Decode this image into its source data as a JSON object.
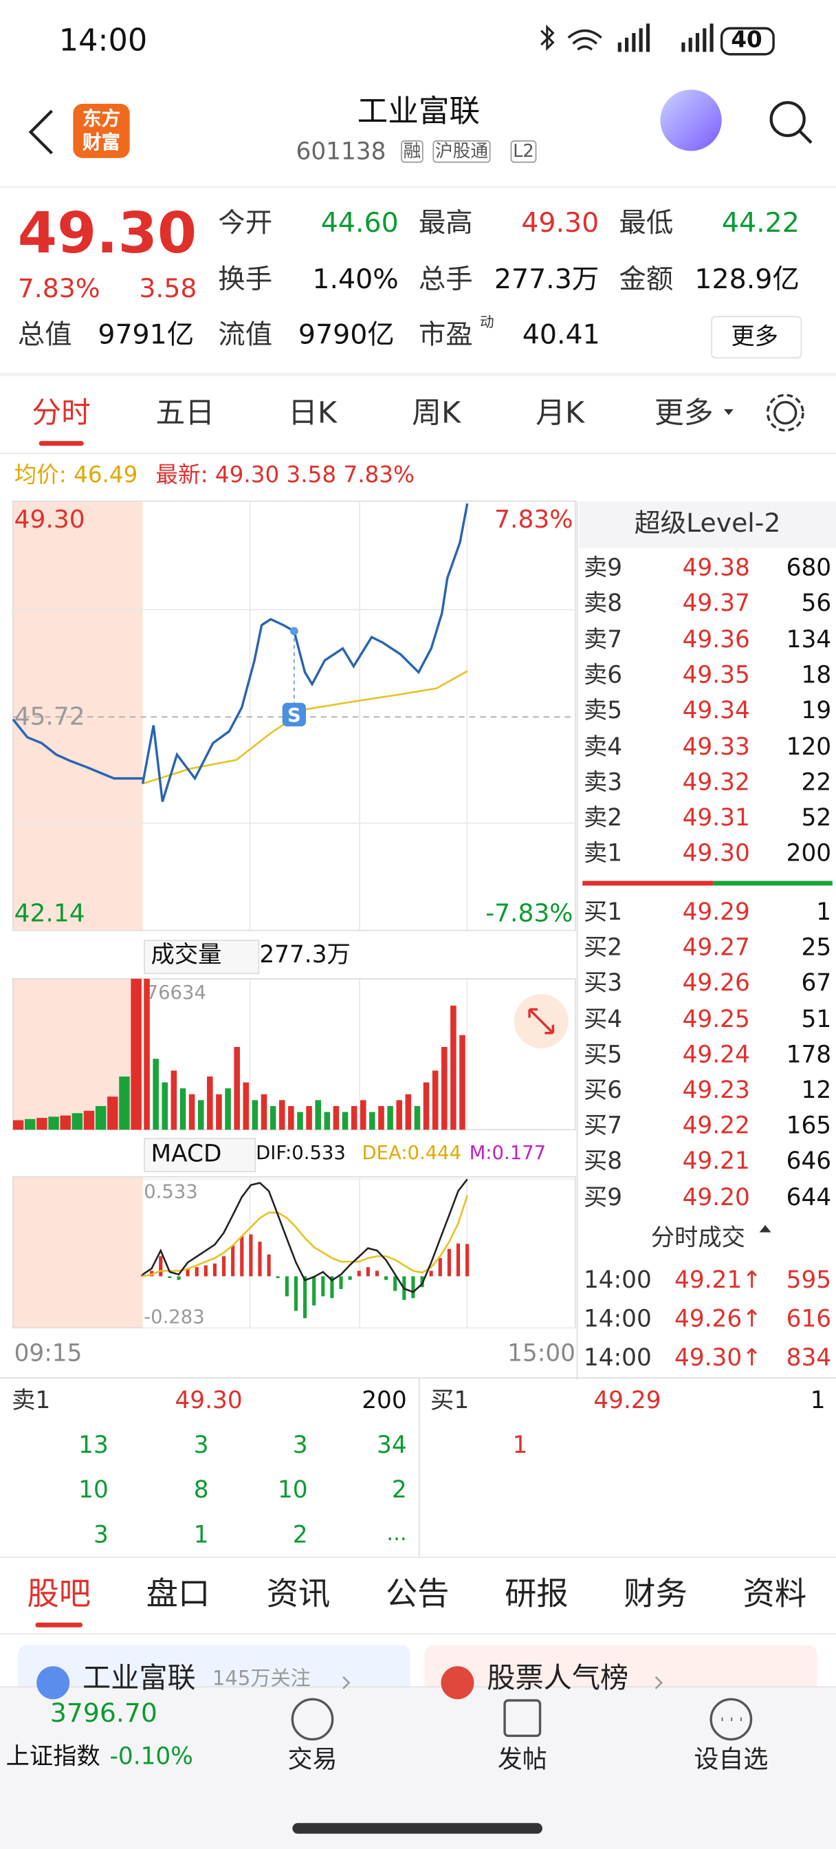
{
  "status": {
    "time": "14:00",
    "battery": "40"
  },
  "header": {
    "logo": [
      "东方",
      "财富"
    ],
    "title": "工业富联",
    "code": "601138",
    "tags": [
      "融",
      "沪股通",
      "L2"
    ]
  },
  "quote": {
    "price": "49.30",
    "change_pct": "7.83%",
    "change": "3.58",
    "fields": [
      {
        "label": "今开",
        "value": "44.60"
      },
      {
        "label": "最高",
        "value": "49.30"
      },
      {
        "label": "最低",
        "value": "44.22"
      },
      {
        "label": "换手",
        "value": "1.40%"
      },
      {
        "label": "总手",
        "value": "277.3万"
      },
      {
        "label": "金额",
        "value": "128.9亿"
      },
      {
        "label": "总值",
        "value": "9791亿"
      },
      {
        "label": "流值",
        "value": "9790亿"
      },
      {
        "label": "市盈",
        "superscript": "动",
        "value": "40.41"
      }
    ],
    "more": "更多"
  },
  "chart_tabs": [
    "分时",
    "五日",
    "日K",
    "周K",
    "月K",
    "更多"
  ],
  "info": {
    "avg": "均价: 46.49",
    "latest": "最新: 49.30 3.58 7.83%"
  },
  "intraday": {
    "ylim": [
      42.14,
      49.3
    ],
    "yticks": [
      {
        "value": 49.3,
        "label": "49.30"
      },
      {
        "value": 45.72,
        "label": "45.72"
      },
      42.14
    ],
    "pct_labels": [
      "7.83%",
      "-7.83%"
    ],
    "auction": [
      45.68,
      45.38,
      45.28,
      45.09,
      44.98,
      44.89,
      44.79,
      44.69,
      44.69,
      44.69
    ],
    "minutes": [
      0,
      6,
      11,
      19,
      29,
      39,
      48,
      55,
      62,
      66,
      71,
      78,
      84,
      90,
      94,
      101,
      111,
      117,
      127,
      133,
      143,
      153,
      160,
      166,
      169,
      176,
      180
    ],
    "price": [
      44.6,
      45.58,
      44.3,
      45.09,
      44.69,
      45.28,
      45.48,
      45.88,
      46.67,
      47.26,
      47.36,
      47.26,
      47.16,
      46.47,
      46.27,
      46.67,
      46.87,
      46.57,
      47.06,
      46.97,
      46.77,
      46.47,
      46.87,
      47.46,
      48.05,
      48.65,
      49.3
    ],
    "avg_minutes": [
      0,
      26,
      52,
      71,
      91,
      117,
      143,
      163,
      180
    ],
    "avg": [
      44.6,
      44.85,
      45.0,
      45.45,
      45.85,
      45.98,
      46.1,
      46.2,
      46.49
    ],
    "marker": "S"
  },
  "volume": {
    "label": "成交量",
    "total": "277.3万",
    "ylim": [
      0,
      76634
    ],
    "yticks": [
      76634
    ],
    "auction": [
      4800,
      5400,
      6000,
      6600,
      7200,
      8400,
      9600,
      12000,
      16800,
      27000,
      76634
    ],
    "values": [
      76634,
      36000,
      24000,
      30000,
      21000,
      18000,
      15000,
      27000,
      18000,
      21000,
      42000,
      24000,
      15000,
      18000,
      12000,
      15000,
      12000,
      9000,
      12000,
      15000,
      9000,
      12000,
      9000,
      12000,
      15000,
      9000,
      12000,
      12000,
      15000,
      18000,
      12000,
      24000,
      30000,
      42000,
      63000,
      48000
    ],
    "colors": [
      "#e0302c",
      "#1aa33a",
      "#1aa33a",
      "#e0302c",
      "#1aa33a",
      "#e0302c",
      "#1aa33a",
      "#e0302c",
      "#e0302c",
      "#1aa33a",
      "#e0302c",
      "#e0302c",
      "#1aa33a",
      "#e0302c",
      "#1aa33a",
      "#e0302c",
      "#e0302c",
      "#1aa33a",
      "#e0302c",
      "#1aa33a",
      "#1aa33a",
      "#e0302c",
      "#1aa33a",
      "#e0302c",
      "#e0302c",
      "#1aa33a",
      "#e0302c",
      "#1aa33a",
      "#e0302c",
      "#e0302c",
      "#1aa33a",
      "#e0302c",
      "#e0302c",
      "#e0302c",
      "#e0302c",
      "#e0302c"
    ]
  },
  "macd": {
    "label": "MACD",
    "dif_label": "DIF:0.533",
    "dea_label": "DEA:0.444",
    "m_label": "M:0.177",
    "ylim": [
      -0.283,
      0.533
    ],
    "yticks": [
      0.533,
      -0.283
    ],
    "dif": [
      0.01,
      0.043,
      0.141,
      0.024,
      0.01,
      0.076,
      0.108,
      0.141,
      0.174,
      0.239,
      0.337,
      0.435,
      0.501,
      0.513,
      0.468,
      0.337,
      0.206,
      0.076,
      -0.022,
      -0.003,
      0.024,
      -0.022,
      0.01,
      0.063,
      0.108,
      0.154,
      0.141,
      0.089,
      0.01,
      -0.068,
      -0.087,
      -0.042,
      0.076,
      0.206,
      0.337,
      0.468,
      0.533
    ],
    "dea": [
      0.0,
      0.01,
      0.03,
      0.03,
      0.03,
      0.04,
      0.06,
      0.08,
      0.1,
      0.13,
      0.17,
      0.22,
      0.27,
      0.32,
      0.35,
      0.35,
      0.32,
      0.27,
      0.21,
      0.16,
      0.13,
      0.1,
      0.08,
      0.08,
      0.08,
      0.1,
      0.11,
      0.11,
      0.09,
      0.06,
      0.03,
      0.02,
      0.05,
      0.11,
      0.19,
      0.29,
      0.444
    ],
    "hist": [
      0.01,
      0.03,
      0.11,
      -0.01,
      -0.02,
      0.04,
      0.05,
      0.06,
      0.07,
      0.11,
      0.17,
      0.22,
      0.23,
      0.19,
      0.12,
      -0.01,
      -0.11,
      -0.19,
      -0.23,
      -0.16,
      -0.11,
      -0.12,
      -0.07,
      -0.02,
      0.03,
      0.05,
      0.03,
      -0.02,
      -0.08,
      -0.13,
      -0.12,
      -0.06,
      0.03,
      0.1,
      0.15,
      0.18,
      0.177
    ]
  },
  "time_axis": [
    "09:15",
    "15:00"
  ],
  "order_book": {
    "title": "超级Level-2",
    "asks": [
      [
        "卖9",
        "49.38",
        680
      ],
      [
        "卖8",
        "49.37",
        56
      ],
      [
        "卖7",
        "49.36",
        134
      ],
      [
        "卖6",
        "49.35",
        18
      ],
      [
        "卖5",
        "49.34",
        19
      ],
      [
        "卖4",
        "49.33",
        120
      ],
      [
        "卖3",
        "49.32",
        22
      ],
      [
        "卖2",
        "49.31",
        52
      ],
      [
        "卖1",
        "49.30",
        200
      ]
    ],
    "bids": [
      [
        "买1",
        "49.29",
        1
      ],
      [
        "买2",
        "49.27",
        25
      ],
      [
        "买3",
        "49.26",
        67
      ],
      [
        "买4",
        "49.25",
        51
      ],
      [
        "买5",
        "49.24",
        178
      ],
      [
        "买6",
        "49.23",
        12
      ],
      [
        "买7",
        "49.22",
        165
      ],
      [
        "买8",
        "49.21",
        646
      ],
      [
        "买9",
        "49.20",
        644
      ]
    ]
  },
  "trades": {
    "title": "分时成交",
    "rows": [
      [
        "14:00",
        "49.21↑",
        595
      ],
      [
        "14:00",
        "49.26↑",
        616
      ],
      [
        "14:00",
        "49.30↑",
        834
      ]
    ]
  },
  "queue": {
    "ask": {
      "label": "卖1",
      "price": "49.30",
      "volume": 200,
      "orders": [
        13,
        3,
        3,
        34,
        10,
        8,
        10,
        2,
        3,
        1,
        2
      ],
      "more": "..."
    },
    "bid": {
      "label": "买1",
      "price": "49.29",
      "volume": 1,
      "orders": [
        1
      ]
    }
  },
  "bottom_tabs": [
    "股吧",
    "盘口",
    "资讯",
    "公告",
    "研报",
    "财务",
    "资料"
  ],
  "cards": [
    {
      "title": "工业富联",
      "sub": "145万关注"
    },
    {
      "title": "股票人气榜"
    }
  ],
  "index_bar": {
    "value": "3796.70",
    "name": "上证指数",
    "change": "-0.10%",
    "actions": [
      "交易",
      "发帖",
      "设自选"
    ]
  }
}
